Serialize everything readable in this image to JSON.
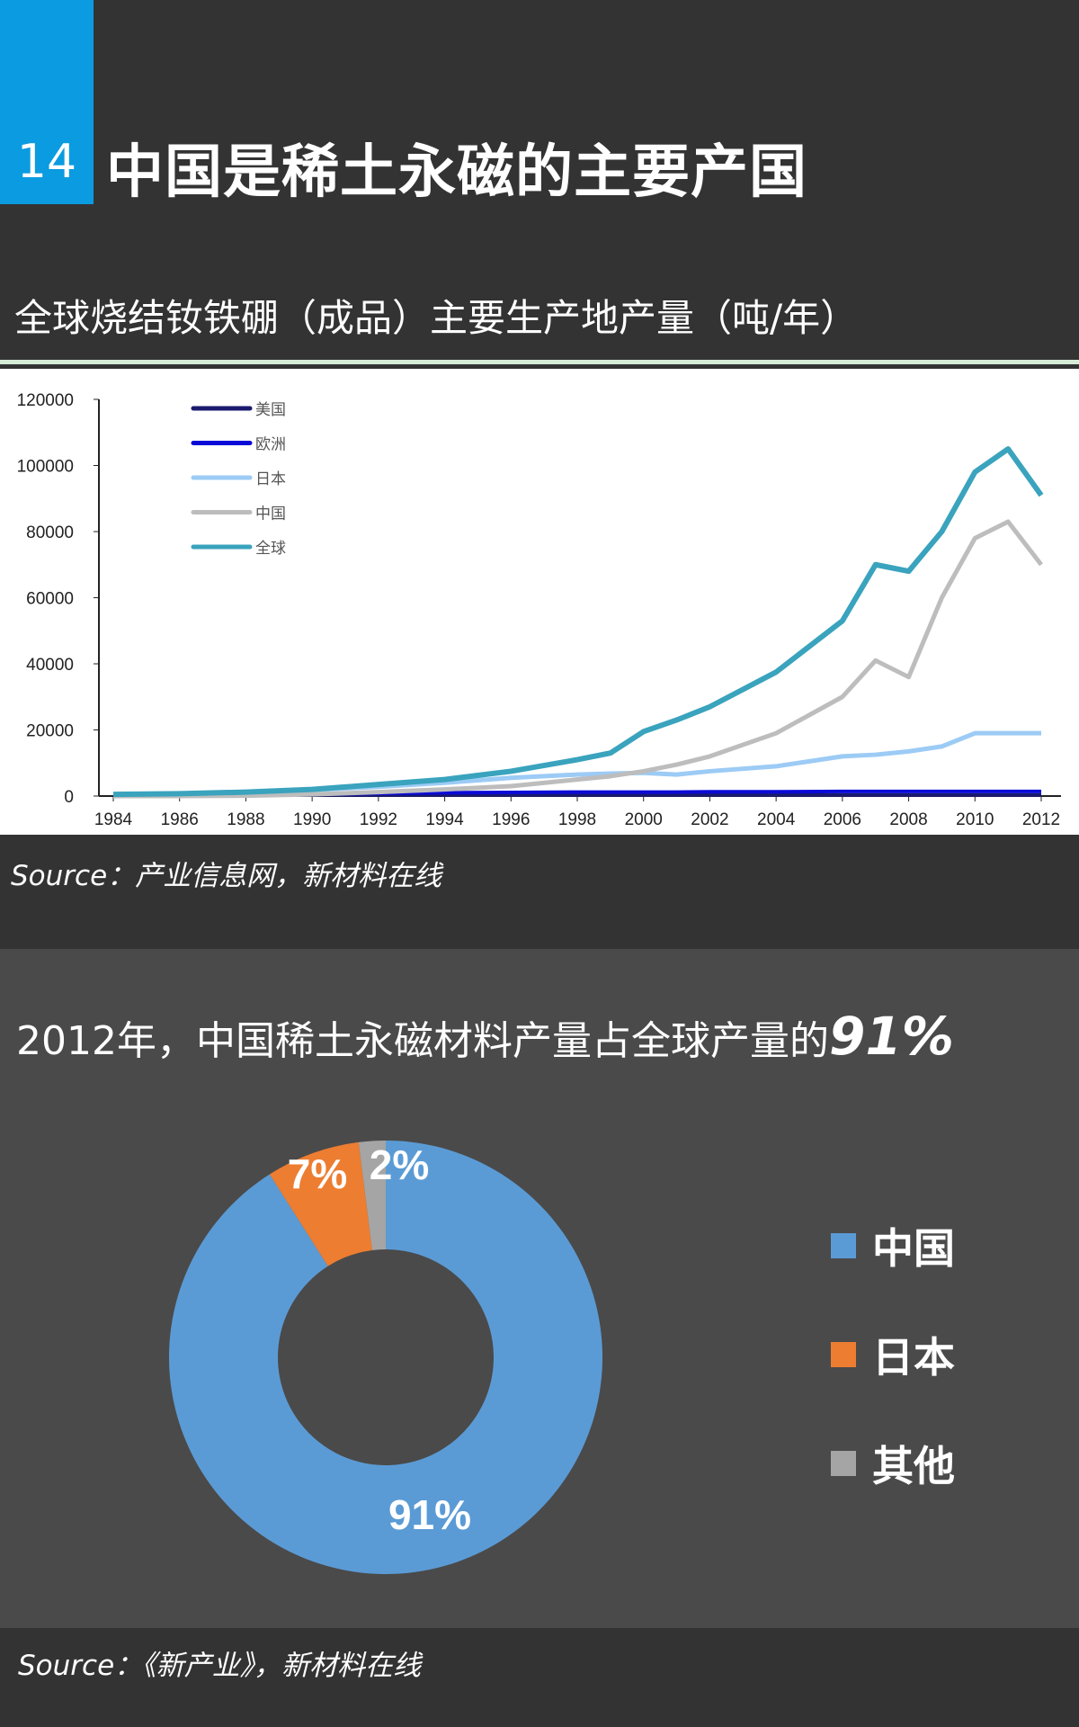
{
  "header": {
    "number": "14",
    "title": "中国是稀土永磁的主要产国",
    "subtitle": "全球烧结钕铁硼（成品）主要生产地产量（吨/年）"
  },
  "source1": "Source：产业信息网，新材料在线",
  "section2": {
    "title_prefix": "2012年，中国稀土永磁材料产量占全球产量的",
    "title_highlight": "91%"
  },
  "source2": "Source：《新产业》，新材料在线",
  "chart_data": [
    {
      "type": "line",
      "title": "全球烧结钕铁硼（成品）主要生产地产量（吨/年）",
      "xlabel": "",
      "ylabel": "",
      "ylim": [
        0,
        120000
      ],
      "xlim": [
        1984,
        2012
      ],
      "yticks": [
        "0",
        "20000",
        "40000",
        "60000",
        "80000",
        "100000",
        "120000"
      ],
      "xticks": [
        "1984",
        "1986",
        "1988",
        "1990",
        "1992",
        "1994",
        "1996",
        "1998",
        "2000",
        "2002",
        "2004",
        "2006",
        "2008",
        "2010",
        "2012"
      ],
      "legend_position": "top-left",
      "grid": false,
      "x": [
        1984,
        1986,
        1988,
        1990,
        1992,
        1994,
        1996,
        1998,
        1999,
        2000,
        2001,
        2002,
        2004,
        2006,
        2007,
        2008,
        2009,
        2010,
        2011,
        2012
      ],
      "series": [
        {
          "name": "美国",
          "color": "#1a1a6e",
          "values": [
            300,
            300,
            300,
            300,
            300,
            300,
            300,
            300,
            300,
            300,
            300,
            300,
            300,
            300,
            300,
            300,
            300,
            300,
            300,
            300
          ]
        },
        {
          "name": "欧洲",
          "color": "#0a0ad8",
          "values": [
            100,
            200,
            300,
            500,
            800,
            1000,
            1100,
            1200,
            1200,
            1200,
            1200,
            1300,
            1300,
            1400,
            1400,
            1400,
            1400,
            1400,
            1400,
            1400
          ]
        },
        {
          "name": "日本",
          "color": "#9ccbf5",
          "values": [
            500,
            700,
            1100,
            1800,
            2800,
            4000,
            5500,
            6500,
            6800,
            7000,
            6500,
            7500,
            9000,
            12000,
            12500,
            13500,
            15000,
            19000,
            19000,
            19000
          ]
        },
        {
          "name": "中国",
          "color": "#bdbdbd",
          "values": [
            0,
            0,
            100,
            500,
            1200,
            2000,
            3000,
            5000,
            6000,
            7500,
            9500,
            12000,
            19000,
            30000,
            41000,
            36000,
            60000,
            78000,
            83000,
            70000
          ]
        },
        {
          "name": "全球",
          "color": "#3aa3bd",
          "values": [
            500,
            700,
            1200,
            2000,
            3500,
            5000,
            7500,
            11000,
            13000,
            19500,
            23000,
            27000,
            37500,
            53000,
            70000,
            68000,
            80000,
            98000,
            105000,
            91000
          ]
        }
      ]
    },
    {
      "type": "pie",
      "title": "2012年，中国稀土永磁材料产量占全球产量的91%",
      "categories": [
        "中国",
        "日本",
        "其他"
      ],
      "values": [
        91,
        7,
        2
      ],
      "labels": [
        "91%",
        "7%",
        "2%"
      ],
      "colors": [
        "#5b9bd5",
        "#ed7d31",
        "#a5a5a5"
      ],
      "legend_position": "right"
    }
  ]
}
